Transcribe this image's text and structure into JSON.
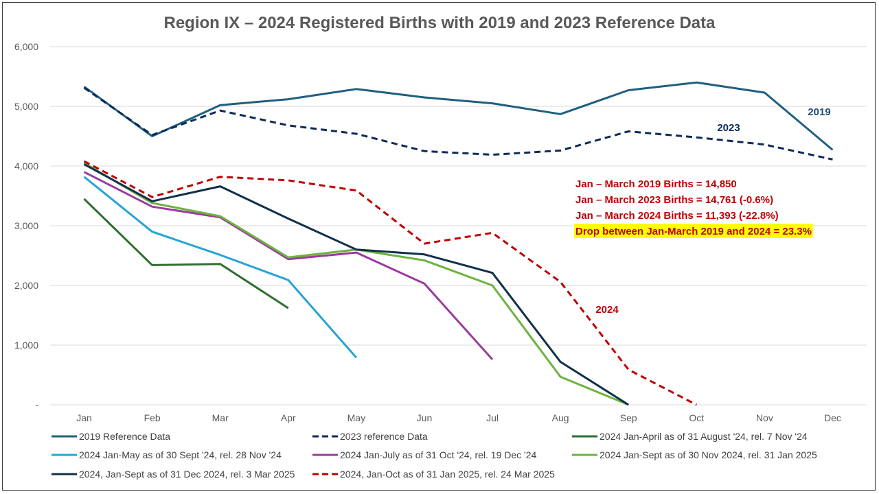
{
  "chart_data": {
    "type": "line",
    "title": "Region IX – 2024 Registered Births with 2019 and 2023 Reference Data",
    "categories": [
      "Jan",
      "Feb",
      "Mar",
      "Apr",
      "May",
      "Jun",
      "Jul",
      "Aug",
      "Sep",
      "Oct",
      "Nov",
      "Dec"
    ],
    "ylim": [
      0,
      6000
    ],
    "yticks": [
      "-",
      "1,000",
      "2,000",
      "3,000",
      "4,000",
      "5,000",
      "6,000"
    ],
    "grid": true,
    "legend_position": "bottom",
    "series": [
      {
        "name": "2019 Reference Data",
        "color": "#1f5f7f",
        "dash": "solid",
        "values": [
          5330,
          4500,
          5020,
          5120,
          5290,
          5150,
          5050,
          4870,
          5270,
          5400,
          5230,
          4270
        ]
      },
      {
        "name": "2023 reference Data",
        "color": "#0e2a57",
        "dash": "dash",
        "values": [
          5310,
          4520,
          4930,
          4680,
          4540,
          4250,
          4190,
          4260,
          4580,
          4480,
          4360,
          4110
        ]
      },
      {
        "name": "2024 Jan-April as of 31 August '24, rel. 7 Nov '24",
        "color": "#2e6e2e",
        "dash": "solid",
        "values": [
          3450,
          2340,
          2360,
          1620,
          null,
          null,
          null,
          null,
          null,
          null,
          null,
          null
        ]
      },
      {
        "name": "2024 Jan-May as of 30 Sept '24, rel. 28 Nov '24",
        "color": "#27a3d7",
        "dash": "solid",
        "values": [
          3820,
          2900,
          2510,
          2090,
          790,
          null,
          null,
          null,
          null,
          null,
          null,
          null
        ]
      },
      {
        "name": "2024 Jan-July as of 31 Oct '24, rel. 19 Dec '24",
        "color": "#9b3aa0",
        "dash": "solid",
        "values": [
          3900,
          3320,
          3140,
          2440,
          2550,
          2030,
          760,
          null,
          null,
          null,
          null,
          null
        ]
      },
      {
        "name": "2024 Jan-Sept as of 30 Nov 2024, rel. 31 Jan 2025",
        "color": "#6cb33f",
        "dash": "solid",
        "values": [
          4050,
          3380,
          3160,
          2470,
          2600,
          2420,
          2000,
          470,
          0,
          null,
          null,
          null
        ]
      },
      {
        "name": "2024, Jan-Sept as of 31 Dec 2024, rel. 3 Mar 2025",
        "color": "#11304a",
        "dash": "solid",
        "values": [
          4030,
          3410,
          3660,
          3120,
          2600,
          2520,
          2210,
          720,
          0,
          null,
          null,
          null
        ]
      },
      {
        "name": "2024, Jan-Oct as of 31 Jan 2025, rel. 24 Mar 2025",
        "color": "#c00000",
        "dash": "dash",
        "values": [
          4080,
          3480,
          3820,
          3760,
          3590,
          2700,
          2880,
          2060,
          590,
          0,
          null,
          null
        ]
      }
    ],
    "series_labels": [
      {
        "text": "2019",
        "color": "#1f4e79"
      },
      {
        "text": "2023",
        "color": "#0e2a57"
      },
      {
        "text": "2024",
        "color": "#c00000"
      }
    ],
    "annotations": [
      {
        "text": "Jan – March 2019 Births  = 14,850",
        "color": "#c00000",
        "highlight": null
      },
      {
        "text": "Jan – March 2023 Births  = 14,761 (-0.6%)",
        "color": "#c00000",
        "highlight": null
      },
      {
        "text": "Jan – March 2024 Births  = 11,393 (-22.8%)",
        "color": "#c00000",
        "highlight": null
      },
      {
        "text": "Drop between Jan-March 2019 and 2024 = 23.3%",
        "color": "#c00000",
        "highlight": "#ffff00"
      }
    ]
  }
}
